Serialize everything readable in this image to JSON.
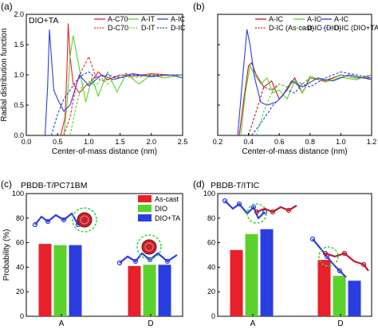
{
  "colors": {
    "red": "#e8202a",
    "green": "#5bd22b",
    "blue": "#2a3ee0",
    "darkred": "#c0182b",
    "ring": "#39d13a"
  },
  "chart_data": [
    {
      "id": "a",
      "panel_label": "(a)",
      "type": "line",
      "title": "DIO+TA",
      "xlabel": "Center-of-mass distance (nm)",
      "ylabel": "Radial distribution function",
      "xlim": [
        0,
        2.5
      ],
      "ylim": [
        0,
        2.0
      ],
      "xticks": [
        "0.0",
        "0.5",
        "1.0",
        "1.5",
        "2.0",
        "2.5"
      ],
      "yticks": [
        "0.0",
        "0.5",
        "1.0",
        "1.5",
        "2.0"
      ],
      "legend": [
        "A-C70",
        "A-IT",
        "A-IC",
        "D-C70",
        "D-IT",
        "D-IC"
      ],
      "series": [
        {
          "name": "A-C70",
          "color": "#e8202a",
          "dash": "none",
          "x": [
            0.55,
            0.62,
            0.65,
            0.67,
            0.7,
            0.75,
            0.85,
            0.95,
            1.05,
            1.15,
            1.3,
            1.5,
            1.7,
            2.0,
            2.3,
            2.5
          ],
          "y": [
            0,
            0.3,
            1.1,
            1.85,
            1.3,
            0.85,
            0.7,
            0.82,
            0.9,
            1.05,
            0.92,
            1.0,
            0.98,
            1.02,
            1.0,
            1.0
          ]
        },
        {
          "name": "A-IT",
          "color": "#5bd22b",
          "dash": "none",
          "x": [
            0.6,
            0.65,
            0.7,
            0.75,
            0.85,
            0.95,
            1.05,
            1.15,
            1.3,
            1.45,
            1.6,
            1.8,
            2.0,
            2.2,
            2.5
          ],
          "y": [
            0,
            0.5,
            1.3,
            1.65,
            1.1,
            0.55,
            0.95,
            0.65,
            1.05,
            0.72,
            1.02,
            0.85,
            1.0,
            0.95,
            1.0
          ]
        },
        {
          "name": "A-IC",
          "color": "#2a3ee0",
          "dash": "none",
          "x": [
            0.3,
            0.34,
            0.37,
            0.4,
            0.44,
            0.5,
            0.6,
            0.7,
            0.85,
            1.0,
            1.2,
            1.4,
            1.7,
            2.0,
            2.3,
            2.5
          ],
          "y": [
            0,
            0.8,
            1.75,
            1.3,
            0.75,
            0.6,
            0.4,
            0.5,
            1.0,
            0.82,
            1.0,
            0.92,
            1.02,
            0.97,
            1.0,
            0.95
          ]
        },
        {
          "name": "D-C70",
          "color": "#e8202a",
          "dash": "3,2",
          "x": [
            0.6,
            0.7,
            0.8,
            0.9,
            1.0,
            1.1,
            1.2,
            1.4,
            1.6,
            1.8,
            2.0,
            2.3,
            2.5
          ],
          "y": [
            0,
            0.3,
            0.85,
            1.1,
            1.3,
            1.0,
            0.9,
            0.95,
            1.02,
            0.98,
            1.0,
            1.0,
            1.0
          ]
        },
        {
          "name": "D-IT",
          "color": "#5bd22b",
          "dash": "3,2",
          "x": [
            0.7,
            0.8,
            0.9,
            1.0,
            1.1,
            1.2,
            1.3,
            1.5,
            1.7,
            2.0,
            2.3,
            2.5
          ],
          "y": [
            0,
            0.5,
            0.85,
            0.9,
            0.8,
            0.95,
            0.85,
            1.0,
            0.95,
            1.0,
            0.98,
            1.0
          ]
        },
        {
          "name": "D-IC",
          "color": "#2a3ee0",
          "dash": "3,2",
          "x": [
            0.4,
            0.5,
            0.6,
            0.7,
            0.8,
            0.9,
            1.0,
            1.1,
            1.3,
            1.5,
            1.7,
            2.0,
            2.3,
            2.5
          ],
          "y": [
            0,
            0.35,
            0.6,
            0.75,
            0.9,
            1.0,
            1.05,
            0.95,
            1.0,
            0.95,
            1.0,
            0.98,
            1.0,
            1.0
          ]
        }
      ]
    },
    {
      "id": "b",
      "panel_label": "(b)",
      "type": "line",
      "title": "",
      "xlabel": "Center-of-mass distance (nm)",
      "ylabel": "",
      "xlim": [
        0.2,
        1.2
      ],
      "ylim": [
        0,
        2.0
      ],
      "xticks": [
        "0.2",
        "0.4",
        "0.6",
        "0.8",
        "1.0",
        "1.2"
      ],
      "yticks": [],
      "legend": [
        "A-IC",
        "A-IC",
        "A-IC",
        "D-IC (As-cast)",
        "D-IC (DIO)",
        "D-IC (DIO+TA)"
      ],
      "series": [
        {
          "name": "A-IC",
          "color": "#c0182b",
          "dash": "none",
          "x": [
            0.34,
            0.37,
            0.4,
            0.42,
            0.45,
            0.5,
            0.55,
            0.6,
            0.65,
            0.7,
            0.75,
            0.8,
            0.9,
            1.0,
            1.1,
            1.2
          ],
          "y": [
            0,
            0.6,
            1.15,
            1.2,
            1.0,
            0.8,
            0.9,
            0.6,
            0.75,
            0.95,
            0.7,
            0.95,
            0.9,
            1.0,
            0.95,
            0.95
          ]
        },
        {
          "name": "A-IC",
          "color": "#5bd22b",
          "dash": "none",
          "x": [
            0.35,
            0.38,
            0.41,
            0.44,
            0.48,
            0.52,
            0.56,
            0.6,
            0.65,
            0.7,
            0.75,
            0.8,
            0.9,
            1.0,
            1.1,
            1.2
          ],
          "y": [
            0,
            0.7,
            1.15,
            1.0,
            0.85,
            0.95,
            0.7,
            0.75,
            0.6,
            0.9,
            0.7,
            0.98,
            0.88,
            0.96,
            0.92,
            1.0
          ]
        },
        {
          "name": "A-IC",
          "color": "#2a3ee0",
          "dash": "none",
          "x": [
            0.33,
            0.36,
            0.39,
            0.41,
            0.44,
            0.48,
            0.52,
            0.58,
            0.62,
            0.68,
            0.75,
            0.85,
            0.95,
            1.05,
            1.15,
            1.2
          ],
          "y": [
            0,
            0.9,
            1.75,
            1.5,
            0.95,
            0.55,
            0.5,
            0.55,
            0.65,
            0.9,
            0.8,
            0.95,
            0.9,
            1.0,
            0.95,
            0.92
          ]
        },
        {
          "name": "D-IC (As-cast)",
          "color": "#c0182b",
          "dash": "3,2",
          "x": [
            0.4,
            0.45,
            0.5,
            0.55,
            0.6,
            0.65,
            0.7,
            0.75,
            0.8,
            0.9,
            1.0,
            1.1,
            1.2
          ],
          "y": [
            0,
            0.4,
            0.8,
            0.75,
            0.85,
            0.8,
            0.9,
            0.85,
            0.95,
            0.9,
            1.0,
            0.95,
            1.0
          ]
        },
        {
          "name": "D-IC (DIO)",
          "color": "#5bd22b",
          "dash": "3,2",
          "x": [
            0.45,
            0.5,
            0.55,
            0.6,
            0.65,
            0.7,
            0.75,
            0.8,
            0.9,
            1.0,
            1.1,
            1.2
          ],
          "y": [
            0,
            0.4,
            0.7,
            0.85,
            0.8,
            0.9,
            0.85,
            0.95,
            0.92,
            1.0,
            0.95,
            1.0
          ]
        },
        {
          "name": "D-IC (DIO+TA)",
          "color": "#2a3ee0",
          "dash": "3,2",
          "x": [
            0.42,
            0.48,
            0.52,
            0.56,
            0.6,
            0.65,
            0.7,
            0.75,
            0.8,
            0.9,
            1.0,
            1.1,
            1.2
          ],
          "y": [
            0,
            0.2,
            0.35,
            0.5,
            0.6,
            0.75,
            0.7,
            0.85,
            0.8,
            0.95,
            1.05,
            1.0,
            0.95
          ]
        }
      ]
    },
    {
      "id": "c",
      "panel_label": "(c)",
      "type": "bar",
      "title": "PBDB-T/PC71BM",
      "xlabel": "",
      "ylabel": "Probability (%)",
      "ylim": [
        0,
        100
      ],
      "yticks": [
        "0",
        "20",
        "40",
        "60",
        "80",
        "100"
      ],
      "categories": [
        "A",
        "D"
      ],
      "series": [
        {
          "name": "As-cast",
          "color": "#e8202a",
          "values": [
            59,
            41
          ]
        },
        {
          "name": "DIO",
          "color": "#5bd22b",
          "values": [
            58,
            42
          ]
        },
        {
          "name": "DIO+TA",
          "color": "#2a3ee0",
          "values": [
            58,
            42
          ]
        }
      ]
    },
    {
      "id": "d",
      "panel_label": "(d)",
      "type": "bar",
      "title": "PBDB-T/ITIC",
      "xlabel": "",
      "ylabel": "",
      "ylim": [
        0,
        100
      ],
      "yticks": [
        "0",
        "20",
        "40",
        "60",
        "80",
        "100"
      ],
      "categories": [
        "A",
        "D"
      ],
      "series": [
        {
          "name": "As-cast",
          "color": "#e8202a",
          "values": [
            54,
            46
          ]
        },
        {
          "name": "DIO",
          "color": "#5bd22b",
          "values": [
            67,
            33
          ]
        },
        {
          "name": "DIO+TA",
          "color": "#2a3ee0",
          "values": [
            71,
            29
          ]
        }
      ]
    }
  ]
}
